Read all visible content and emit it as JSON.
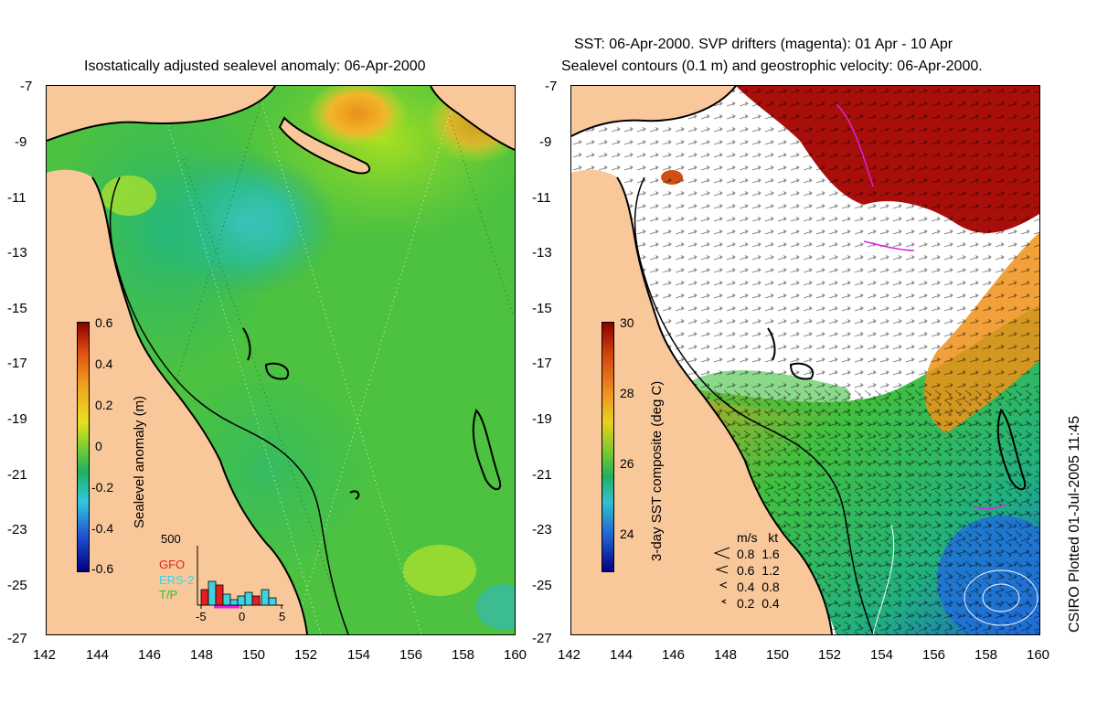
{
  "left_map": {
    "title": "Isostatically adjusted sealevel anomaly: 06-Apr-2000",
    "y_ticks": [
      "-7",
      "-9",
      "-11",
      "-13",
      "-15",
      "-17",
      "-19",
      "-21",
      "-23",
      "-25",
      "-27"
    ],
    "x_ticks": [
      "142",
      "144",
      "146",
      "148",
      "150",
      "152",
      "154",
      "156",
      "158",
      "160"
    ],
    "colorbar": {
      "label": "Sealevel anomaly (m)",
      "ticks": [
        "0.6",
        "0.4",
        "0.2",
        "0",
        "-0.2",
        "-0.4",
        "-0.6"
      ],
      "range": [
        -0.6,
        0.6
      ]
    },
    "histogram": {
      "max_label": "500",
      "legend": [
        {
          "name": "GFO",
          "color": "#e02020"
        },
        {
          "name": "ERS-2",
          "color": "#40d0e0"
        },
        {
          "name": "T/P",
          "color": "#30c030"
        }
      ],
      "x_ticks": [
        "-5",
        "0",
        "5"
      ]
    }
  },
  "right_map": {
    "title_line1": "SST: 06-Apr-2000. SVP drifters (magenta): 01 Apr - 10 Apr",
    "title_line2": "Sealevel contours (0.1 m) and geostrophic velocity: 06-Apr-2000.",
    "y_ticks": [
      "-7",
      "-9",
      "-11",
      "-13",
      "-15",
      "-17",
      "-19",
      "-21",
      "-23",
      "-25",
      "-27"
    ],
    "x_ticks": [
      "142",
      "144",
      "146",
      "148",
      "150",
      "152",
      "154",
      "156",
      "158",
      "160"
    ],
    "colorbar": {
      "label": "3-day SST composite (deg C)",
      "ticks": [
        "30",
        "28",
        "26",
        "24"
      ],
      "range": [
        23,
        30
      ]
    },
    "arrow_legend": {
      "header": "m/s   kt",
      "rows": [
        "0.8  1.6",
        "0.6  1.2",
        "0.4  0.8",
        "0.2  0.4"
      ]
    }
  },
  "side_label": "CSIRO Plotted 01-Jul-2005 11:45",
  "colors": {
    "land": "#f8c89b",
    "sea_mid": "#4cc240",
    "warm": "#e89a1a",
    "hot": "#a01010",
    "cold": "#40c0e0"
  }
}
